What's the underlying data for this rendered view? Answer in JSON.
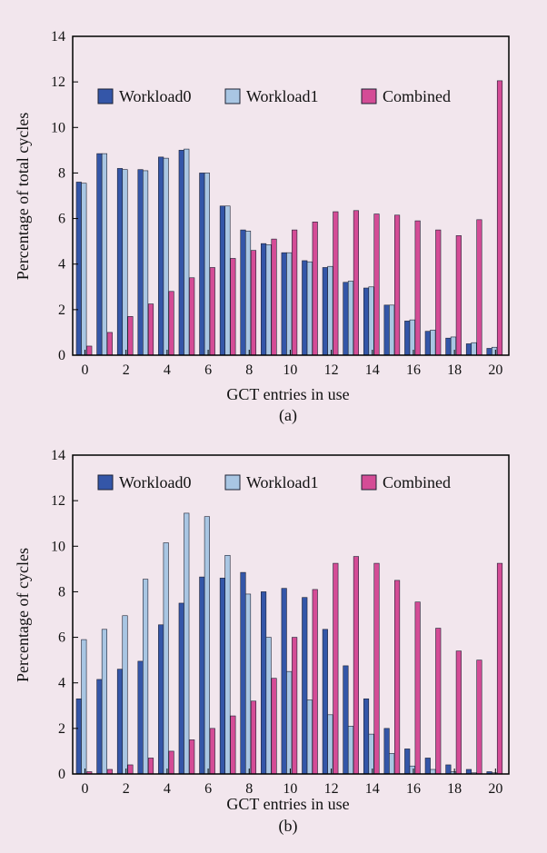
{
  "colors": {
    "background": "#f2e6ed",
    "workload0": "#3456a8",
    "workload1": "#a9c6e3",
    "combined": "#d44c96"
  },
  "chart_data": [
    {
      "type": "bar",
      "panel_label": "(a)",
      "xlabel": "GCT entries in use",
      "ylabel": "Percentage of total cycles",
      "ylim": [
        0,
        14
      ],
      "yticks": [
        0,
        2,
        4,
        6,
        8,
        10,
        12,
        14
      ],
      "xticks": [
        0,
        2,
        4,
        6,
        8,
        10,
        12,
        14,
        16,
        18,
        20
      ],
      "legend_position": "top",
      "categories": [
        0,
        1,
        2,
        3,
        4,
        5,
        6,
        7,
        8,
        9,
        10,
        11,
        12,
        13,
        14,
        15,
        16,
        17,
        18,
        19,
        20
      ],
      "series": [
        {
          "name": "Workload0",
          "color_key": "workload0",
          "values": [
            7.6,
            8.85,
            8.2,
            8.15,
            8.7,
            9.0,
            8.0,
            6.55,
            5.5,
            4.9,
            4.5,
            4.15,
            3.85,
            3.2,
            2.95,
            2.2,
            1.5,
            1.05,
            0.75,
            0.5,
            0.3
          ]
        },
        {
          "name": "Workload1",
          "color_key": "workload1",
          "values": [
            7.55,
            8.85,
            8.15,
            8.1,
            8.65,
            9.05,
            8.0,
            6.55,
            5.45,
            4.85,
            4.5,
            4.1,
            3.9,
            3.25,
            3.0,
            2.2,
            1.55,
            1.1,
            0.8,
            0.55,
            0.35
          ]
        },
        {
          "name": "Combined",
          "color_key": "combined",
          "values": [
            0.4,
            1.0,
            1.7,
            2.25,
            2.8,
            3.4,
            3.85,
            4.25,
            4.6,
            5.1,
            5.5,
            5.85,
            6.3,
            6.35,
            6.2,
            6.15,
            5.9,
            5.5,
            5.25,
            5.95,
            12.05
          ]
        }
      ]
    },
    {
      "type": "bar",
      "panel_label": "(b)",
      "xlabel": "GCT entries in use",
      "ylabel": "Percentage of cycles",
      "ylim": [
        0,
        14
      ],
      "yticks": [
        0,
        2,
        4,
        6,
        8,
        10,
        12,
        14
      ],
      "xticks": [
        0,
        2,
        4,
        6,
        8,
        10,
        12,
        14,
        16,
        18,
        20
      ],
      "legend_position": "top",
      "categories": [
        0,
        1,
        2,
        3,
        4,
        5,
        6,
        7,
        8,
        9,
        10,
        11,
        12,
        13,
        14,
        15,
        16,
        17,
        18,
        19,
        20
      ],
      "series": [
        {
          "name": "Workload0",
          "color_key": "workload0",
          "values": [
            3.3,
            4.15,
            4.6,
            4.95,
            6.55,
            7.5,
            8.65,
            8.6,
            8.85,
            8.0,
            8.15,
            7.75,
            6.35,
            4.75,
            3.3,
            2.0,
            1.1,
            0.7,
            0.4,
            0.2,
            0.1
          ]
        },
        {
          "name": "Workload1",
          "color_key": "workload1",
          "values": [
            5.9,
            6.35,
            6.95,
            8.55,
            10.15,
            11.45,
            11.3,
            9.6,
            7.9,
            6.0,
            4.5,
            3.25,
            2.6,
            2.1,
            1.75,
            0.9,
            0.35,
            0.2,
            0.1,
            0.05,
            0.05
          ]
        },
        {
          "name": "Combined",
          "color_key": "combined",
          "values": [
            0.1,
            0.2,
            0.4,
            0.7,
            1.0,
            1.5,
            2.0,
            2.55,
            3.2,
            4.2,
            6.0,
            8.1,
            9.25,
            9.55,
            9.25,
            8.5,
            7.55,
            6.4,
            5.4,
            5.0,
            9.25
          ]
        }
      ]
    }
  ]
}
